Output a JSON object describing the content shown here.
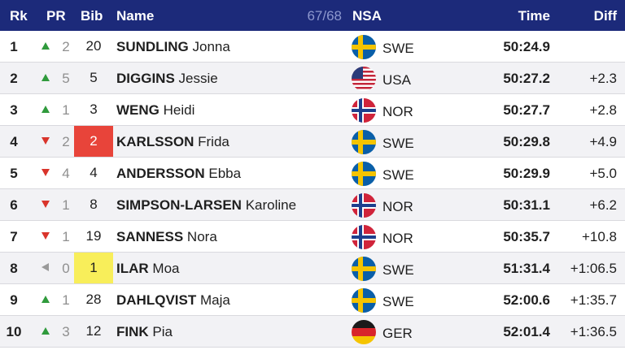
{
  "header": {
    "rank": "Rk",
    "pr": "PR",
    "bib": "Bib",
    "name": "Name",
    "count": "67/68",
    "nsa": "NSA",
    "time": "Time",
    "diff": "Diff"
  },
  "colors": {
    "header_bg": "#1c2a7a",
    "trend_up": "#2f9a3c",
    "trend_down": "#d9342b",
    "trend_same": "#9a9a9a",
    "bib_leader_red": "#e8443a",
    "bib_yellow": "#f8ee5a"
  },
  "rows": [
    {
      "rank": "1",
      "trend": "up",
      "pr": "2",
      "bib": "20",
      "bib_style": "",
      "last": "SUNDLING",
      "first": "Jonna",
      "nsa": "SWE",
      "flag": "swe-flag-icon",
      "time": "50:24.9",
      "diff": ""
    },
    {
      "rank": "2",
      "trend": "up",
      "pr": "5",
      "bib": "5",
      "bib_style": "",
      "last": "DIGGINS",
      "first": "Jessie",
      "nsa": "USA",
      "flag": "usa-flag-icon",
      "time": "50:27.2",
      "diff": "+2.3"
    },
    {
      "rank": "3",
      "trend": "up",
      "pr": "1",
      "bib": "3",
      "bib_style": "",
      "last": "WENG",
      "first": "Heidi",
      "nsa": "NOR",
      "flag": "nor-flag-icon",
      "time": "50:27.7",
      "diff": "+2.8"
    },
    {
      "rank": "4",
      "trend": "down",
      "pr": "2",
      "bib": "2",
      "bib_style": "red",
      "last": "KARLSSON",
      "first": "Frida",
      "nsa": "SWE",
      "flag": "swe-flag-icon",
      "time": "50:29.8",
      "diff": "+4.9"
    },
    {
      "rank": "5",
      "trend": "down",
      "pr": "4",
      "bib": "4",
      "bib_style": "",
      "last": "ANDERSSON",
      "first": "Ebba",
      "nsa": "SWE",
      "flag": "swe-flag-icon",
      "time": "50:29.9",
      "diff": "+5.0"
    },
    {
      "rank": "6",
      "trend": "down",
      "pr": "1",
      "bib": "8",
      "bib_style": "",
      "last": "SIMPSON-LARSEN",
      "first": "Karoline",
      "nsa": "NOR",
      "flag": "nor-flag-icon",
      "time": "50:31.1",
      "diff": "+6.2"
    },
    {
      "rank": "7",
      "trend": "down",
      "pr": "1",
      "bib": "19",
      "bib_style": "",
      "last": "SANNESS",
      "first": "Nora",
      "nsa": "NOR",
      "flag": "nor-flag-icon",
      "time": "50:35.7",
      "diff": "+10.8"
    },
    {
      "rank": "8",
      "trend": "same",
      "pr": "0",
      "bib": "1",
      "bib_style": "yellow",
      "last": "ILAR",
      "first": "Moa",
      "nsa": "SWE",
      "flag": "swe-flag-icon",
      "time": "51:31.4",
      "diff": "+1:06.5"
    },
    {
      "rank": "9",
      "trend": "up",
      "pr": "1",
      "bib": "28",
      "bib_style": "",
      "last": "DAHLQVIST",
      "first": "Maja",
      "nsa": "SWE",
      "flag": "swe-flag-icon",
      "time": "52:00.6",
      "diff": "+1:35.7"
    },
    {
      "rank": "10",
      "trend": "up",
      "pr": "3",
      "bib": "12",
      "bib_style": "",
      "last": "FINK",
      "first": "Pia",
      "nsa": "GER",
      "flag": "ger-flag-icon",
      "time": "52:01.4",
      "diff": "+1:36.5"
    }
  ]
}
